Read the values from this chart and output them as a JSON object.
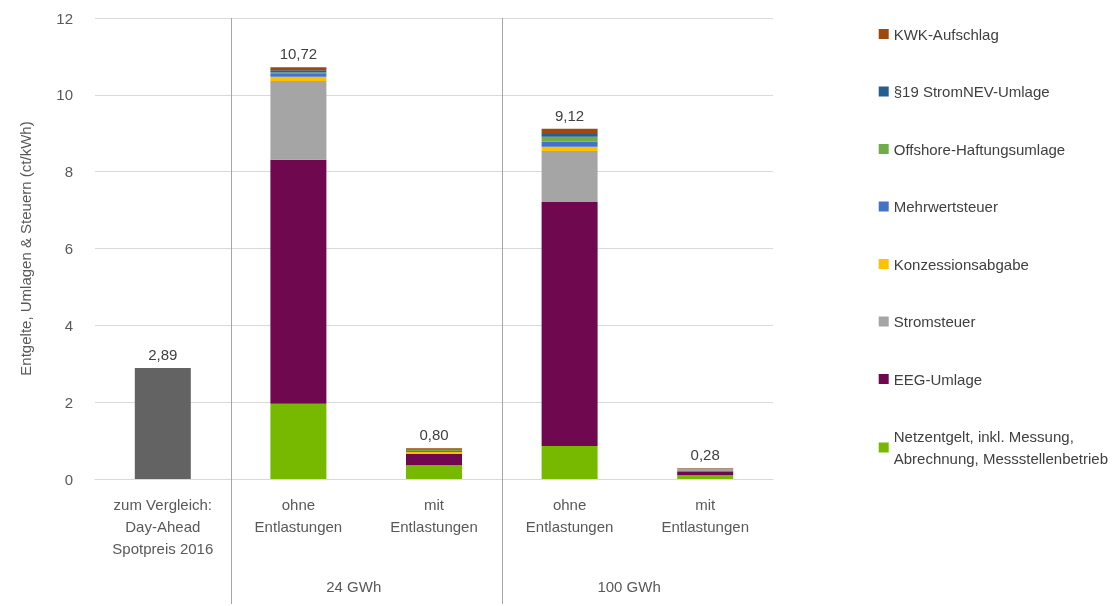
{
  "chart_data": {
    "type": "bar",
    "stacked": true,
    "ylabel": "Entgelte, Umlagen & Steuern (ct/kWh)",
    "categories": [
      "zum Vergleich:\nDay-Ahead\nSpotpreis 2016",
      "ohne\nEntlastungen",
      "mit\nEntlastungen",
      "ohne\nEntlastungen",
      "mit\nEntlastungen"
    ],
    "series": [
      {
        "color": "#636363",
        "values": [
          2.89,
          null,
          null,
          null,
          null
        ],
        "value_labels": [
          "2,89",
          null,
          null,
          null,
          null
        ]
      },
      {
        "name": "Netzentgelt, inkl. Messung,\nAbrechnung, Messstellenbetrieb",
        "color": "#76b900",
        "values": [
          null,
          1.96,
          0.36,
          0.86,
          0.1
        ]
      },
      {
        "name": "EEG-Umlage",
        "color": "#70084f",
        "values": [
          null,
          6.35,
          0.29,
          6.35,
          0.1
        ]
      },
      {
        "name": "Stromsteuer",
        "color": "#a5a5a5",
        "values": [
          null,
          2.05,
          null,
          1.33,
          null
        ]
      },
      {
        "name": "Konzessionsabgabe",
        "color": "#ffc000",
        "values": [
          null,
          0.11,
          0.05,
          0.11,
          0.02
        ]
      },
      {
        "name": "Mehrwertsteuer",
        "color": "#4472c4",
        "values": [
          null,
          0.07,
          0.03,
          0.13,
          0.02
        ]
      },
      {
        "name": "Offshore-Haftungsumlage",
        "color": "#70ad47",
        "values": [
          null,
          0.04,
          0.03,
          0.13,
          0.02
        ]
      },
      {
        "name": "§19 StromNEV-Umlage",
        "color": "#255e91",
        "values": [
          null,
          0.06,
          0.02,
          0.07,
          0.01
        ]
      },
      {
        "name": "KWK-Aufschlag",
        "color": "#9e480e",
        "values": [
          null,
          0.08,
          0.02,
          0.14,
          0.01
        ]
      }
    ],
    "totals": [
      null,
      "10,72",
      "0,80",
      "9,12",
      "0,28"
    ],
    "annotations": [
      "24 GWh",
      "100 GWh"
    ],
    "ylim": [
      0,
      12
    ],
    "yticks": [
      0,
      2,
      4,
      6,
      8,
      10,
      12
    ],
    "grid": "y",
    "legend": "right"
  }
}
